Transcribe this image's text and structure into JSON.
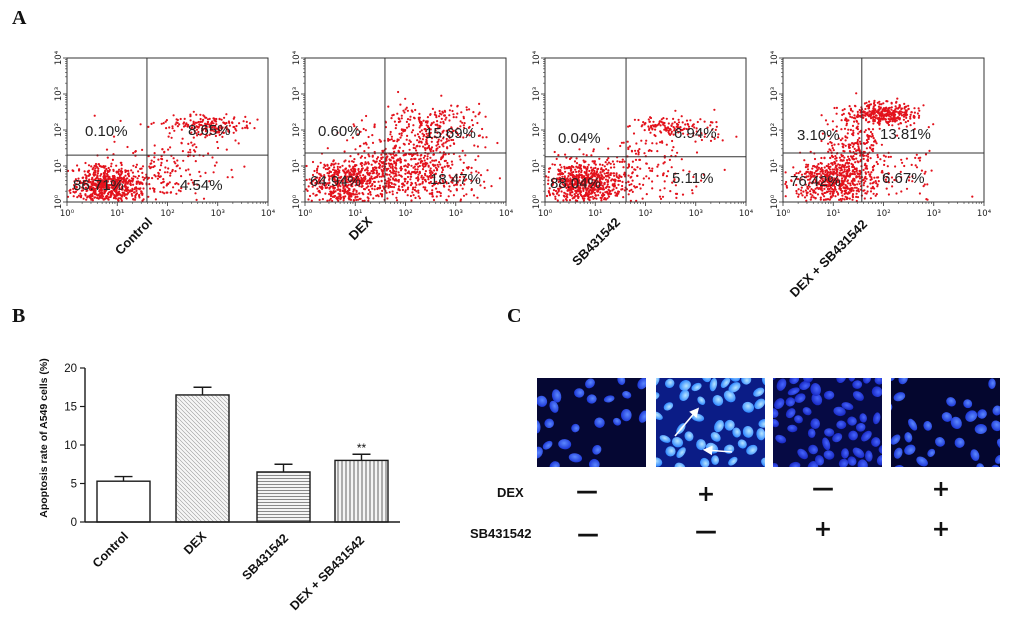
{
  "panels": {
    "a": "A",
    "b": "B",
    "c": "C"
  },
  "chart_data": [
    {
      "type": "scatter",
      "panel": "A",
      "xscale": "log",
      "yscale": "log",
      "xlim": [
        1,
        10000
      ],
      "ylim": [
        1,
        10000
      ],
      "x_ticks": [
        "10⁰",
        "10¹",
        "10²",
        "10³",
        "10⁴"
      ],
      "y_ticks": [
        "10⁰",
        "10¹",
        "10²",
        "10³",
        "10⁴"
      ],
      "grid": false,
      "point_color": "#e3121c",
      "plots": [
        {
          "label": "Control",
          "gate": {
            "x": 39,
            "y": 20
          },
          "quadrants": {
            "upper_left": "0.10%",
            "upper_right": "8.65%",
            "lower_left": "86.71%",
            "lower_right": "4.54%"
          }
        },
        {
          "label": "DEX",
          "gate": {
            "x": 39,
            "y": 23
          },
          "quadrants": {
            "upper_left": "0.60%",
            "upper_right": "15.69%",
            "lower_left": "64.94%",
            "lower_right": "18.47%"
          }
        },
        {
          "label": "SB431542",
          "gate": {
            "x": 41,
            "y": 18
          },
          "quadrants": {
            "upper_left": "0.04%",
            "upper_right": "6.94%",
            "lower_left": "88.04%",
            "lower_right": "5.11%"
          }
        },
        {
          "label": "DEX + SB431542",
          "gate": {
            "x": 37,
            "y": 23
          },
          "quadrants": {
            "upper_left": "3.10%",
            "upper_right": "13.81%",
            "lower_left": "76.42%",
            "lower_right": "6.67%"
          }
        }
      ]
    },
    {
      "type": "bar",
      "panel": "B",
      "categories": [
        "Control",
        "DEX",
        "SB431542",
        "DEX + SB431542"
      ],
      "values": [
        5.3,
        16.5,
        6.5,
        8.0
      ],
      "errors": [
        0.6,
        1.0,
        1.0,
        0.8
      ],
      "ylabel": "Apoptosis rate of A549 cells (%)",
      "ylim": [
        0,
        20
      ],
      "y_ticks": [
        "0",
        "5",
        "10",
        "15",
        "20"
      ],
      "annotations": [
        {
          "category": "DEX + SB431542",
          "text": "**"
        }
      ]
    }
  ],
  "panel_c": {
    "rows": [
      {
        "label": "DEX",
        "marks": [
          "—",
          "+",
          "—",
          "+"
        ]
      },
      {
        "label": "SB431542",
        "marks": [
          "—",
          "—",
          "+",
          "+"
        ]
      }
    ]
  }
}
